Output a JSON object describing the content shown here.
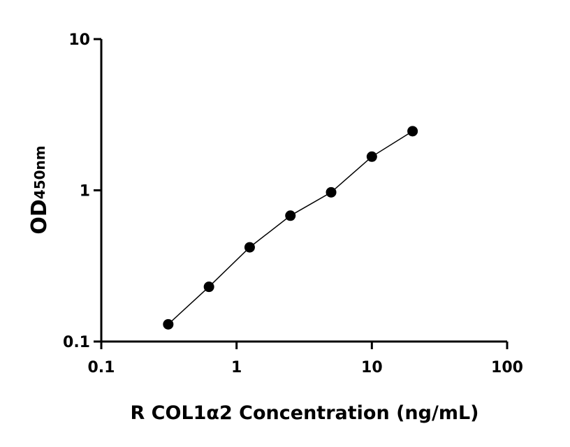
{
  "chart_data": {
    "type": "scatter",
    "x_label": "R COL1α2 Concentration (ng/mL)",
    "y_label": "OD",
    "y_label_subscript": "450nm",
    "x_log": true,
    "y_log": true,
    "xlim": [
      0.1,
      100
    ],
    "xticks": [
      0.1,
      1,
      10,
      100
    ],
    "ylim": [
      0.1,
      10
    ],
    "yticks": [
      0.1,
      1,
      10
    ],
    "series": [
      {
        "color": "#000000",
        "x": [
          0.3125,
          0.625,
          1.25,
          2.5,
          5,
          10,
          20
        ],
        "values": [
          0.13,
          0.23,
          0.42,
          0.68,
          0.97,
          1.67,
          2.46
        ]
      }
    ]
  }
}
